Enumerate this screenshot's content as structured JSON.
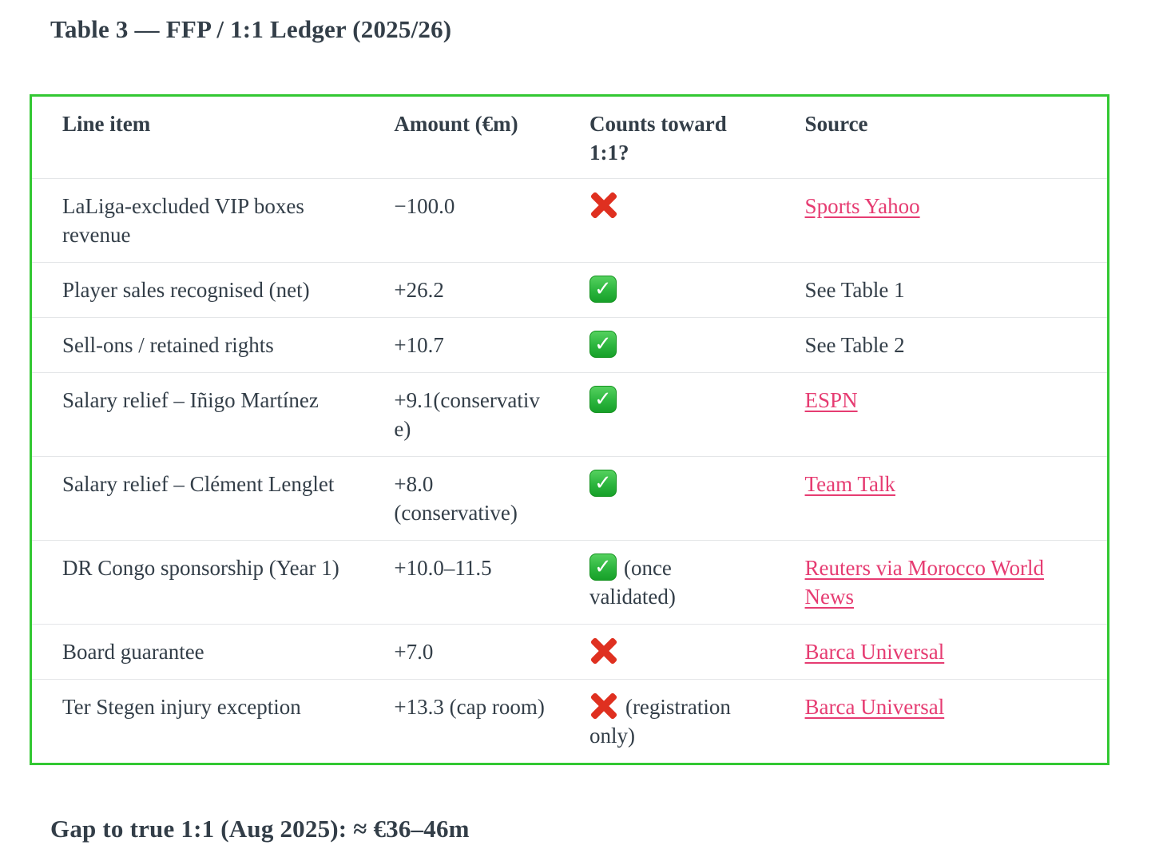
{
  "title": "Table 3 — FFP / 1:1 Ledger (2025/26)",
  "colors": {
    "table_border": "#32c832",
    "link_pink": "#e63c72",
    "text": "#333e48",
    "check_green": "#2cb53e",
    "cross_red": "#df3020",
    "row_divider": "#e4e6e8"
  },
  "table": {
    "columns": [
      {
        "label": "Line item"
      },
      {
        "label": "Amount (€m)"
      },
      {
        "label": "Counts toward 1:1?"
      },
      {
        "label": "Source"
      }
    ],
    "rows": [
      {
        "line_item": "LaLiga-excluded VIP boxes revenue",
        "amount": "−100.0",
        "counts": {
          "icon": "cross",
          "note": ""
        },
        "source": {
          "text": "Sports Yahoo",
          "is_link": true
        }
      },
      {
        "line_item": "Player sales recognised (net)",
        "amount": "+26.2",
        "counts": {
          "icon": "check",
          "note": ""
        },
        "source": {
          "text": "See Table 1",
          "is_link": false
        }
      },
      {
        "line_item": "Sell-ons / retained rights",
        "amount": "+10.7",
        "counts": {
          "icon": "check",
          "note": ""
        },
        "source": {
          "text": "See Table 2",
          "is_link": false
        }
      },
      {
        "line_item": "Salary relief – Iñigo Martínez",
        "amount": "+9.1(conservative)",
        "counts": {
          "icon": "check",
          "note": ""
        },
        "source": {
          "text": "ESPN",
          "is_link": true
        }
      },
      {
        "line_item": "Salary relief – Clément Lenglet",
        "amount": "+8.0 (conservative)",
        "counts": {
          "icon": "check",
          "note": ""
        },
        "source": {
          "text": "Team Talk",
          "is_link": true
        }
      },
      {
        "line_item": "DR Congo sponsorship (Year 1)",
        "amount": "+10.0–11.5",
        "counts": {
          "icon": "check",
          "note": "(once validated)"
        },
        "source": {
          "text": "Reuters via Morocco World News",
          "is_link": true
        }
      },
      {
        "line_item": "Board guarantee",
        "amount": "+7.0",
        "counts": {
          "icon": "cross",
          "note": ""
        },
        "source": {
          "text": "Barca Universal",
          "is_link": true
        }
      },
      {
        "line_item": "Ter Stegen injury exception",
        "amount": "+13.3 (cap room)",
        "counts": {
          "icon": "cross",
          "note": "(registration only)"
        },
        "source": {
          "text": "Barca Universal",
          "is_link": true
        }
      }
    ]
  },
  "footer": {
    "gap_text": "Gap to true 1:1 (Aug 2025): ≈ €36–46m"
  }
}
